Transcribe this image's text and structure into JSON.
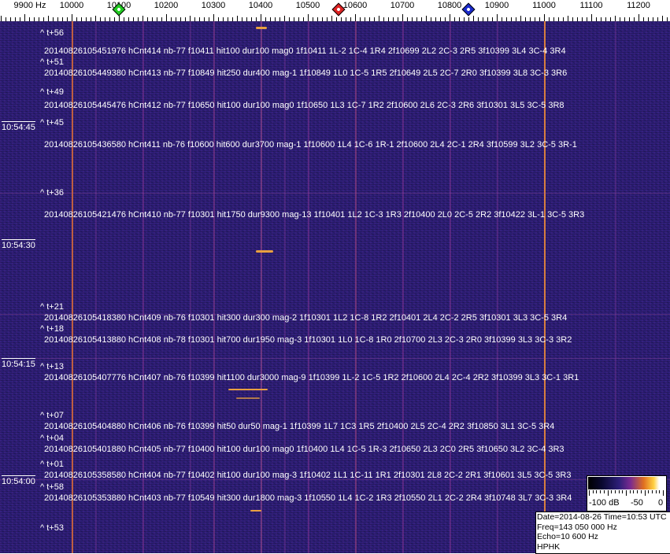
{
  "axis": {
    "unit_label": "9900 Hz",
    "ticks": [
      "10000",
      "10100",
      "10200",
      "10300",
      "10400",
      "10500",
      "10600",
      "10700",
      "10800",
      "10900",
      "11000",
      "11100",
      "11200"
    ],
    "markers": [
      {
        "name": "green-marker",
        "freq_hz": 10100,
        "color": "#22cc22"
      },
      {
        "name": "red-marker",
        "freq_hz": 10565,
        "color": "#dd2222"
      },
      {
        "name": "blue-marker",
        "freq_hz": 10840,
        "color": "#1a2acc"
      }
    ]
  },
  "time_labels": [
    "10:54:45",
    "10:54:30",
    "10:54:15",
    "10:54:00"
  ],
  "offsets": [
    "^ t+56",
    "^ t+51",
    "^ t+49",
    "^ t+45",
    "^ t+36",
    "^ t+21",
    "^ t+18",
    "^ t+13",
    "^ t+07",
    "^ t+04",
    "^ t+01",
    "^ t+58",
    "^ t+53"
  ],
  "detections": [
    "20140826105451976 hCnt414 nb-77 f10411 hit100 dur100 mag0 1f10411 1L-2 1C-4 1R4 2f10699 2L2 2C-3 2R5 3f10399 3L4 3C-4 3R4",
    "20140826105449380 hCnt413 nb-77 f10849 hit250 dur400 mag-1 1f10849 1L0 1C-5 1R5 2f10649 2L5 2C-7 2R0 3f10399 3L8 3C-3 3R6",
    "20140826105445476 hCnt412 nb-77 f10650 hit100 dur100 mag0 1f10650 1L3 1C-7 1R2 2f10600 2L6 2C-3 2R6 3f10301 3L5 3C-5 3R8",
    "20140826105436580 hCnt411 nb-76 f10600 hit600 dur3700 mag-1 1f10600 1L4 1C-6 1R-1 2f10600 2L4 2C-1 2R4 3f10599 3L2 3C-5 3R-1",
    "20140826105421476 hCnt410 nb-77 f10301 hit1750 dur9300 mag-13 1f10401 1L2 1C-3 1R3 2f10400 2L0 2C-5 2R2 3f10422 3L-1 3C-5 3R3",
    "20140826105418380 hCnt409 nb-76 f10301 hit300 dur300 mag-2 1f10301 1L2 1C-8 1R2 2f10401 2L4 2C-2 2R5 3f10301 3L3 3C-5 3R4",
    "20140826105413880 hCnt408 nb-78 f10301 hit700 dur1950 mag-3 1f10301 1L0 1C-8 1R0 2f10700 2L3 2C-3 2R0 3f10399 3L3 3C-3 3R2",
    "20140826105407776 hCnt407 nb-76 f10399 hit1100 dur3000 mag-9 1f10399 1L-2 1C-5 1R2 2f10600 2L4 2C-4 2R2 3f10399 3L3 3C-1 3R1",
    "20140826105404880 hCnt406 nb-76 f10399 hit50 dur50 mag-1 1f10399 1L7 1C3 1R5 2f10400 2L5 2C-4 2R2 3f10850 3L1 3C-5 3R4",
    "20140826105401880 hCnt405 nb-77 f10400 hit100 dur100 mag0 1f10400 1L4 1C-5 1R-3 2f10650 2L3 2C0 2R5 3f10650 3L2 3C-4 3R3",
    "20140826105358580 hCnt404 nb-77 f10402 hit100 dur100 mag-3 1f10402 1L1 1C-11 1R1 2f10301 2L8 2C-2 2R1 3f10601 3L5 3C-5 3R3",
    "20140826105353880 hCnt403 nb-77 f10549 hit300 dur1800 mag-3 1f10550 1L4 1C-2 1R3 2f10550 2L1 2C-2 2R4 3f10748 3L7 3C-3 3R4"
  ],
  "colorbar": {
    "labels": [
      "-100 dB",
      "-50",
      "0"
    ]
  },
  "info": {
    "date_time": "Date=2014-08-26 Time=10:53 UTC",
    "freq": "Freq=143 050 000 Hz",
    "echo": "Echo=10 600 Hz",
    "station": "HPHK"
  }
}
